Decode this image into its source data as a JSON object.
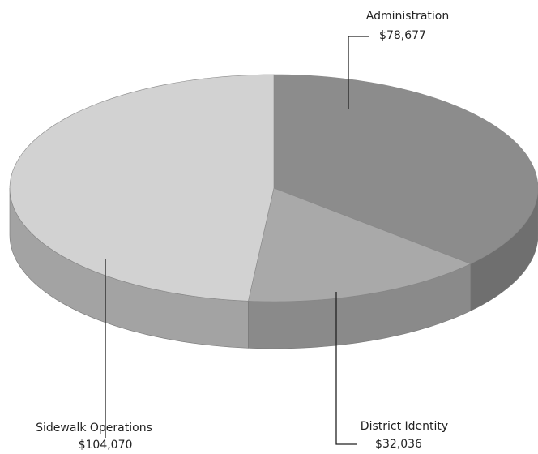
{
  "chart_data": {
    "type": "pie",
    "categories": [
      "Administration",
      "District Identity",
      "Sidewalk Operations"
    ],
    "values": [
      78677,
      32036,
      104070
    ],
    "value_labels": [
      "$78,677",
      "$32,036",
      "$104,070"
    ],
    "colors": [
      "#8c8c8c",
      "#a9a9a9",
      "#d2d2d2"
    ],
    "side_colors": [
      "#6f6f6f",
      "#8a8a8a",
      "#a3a3a3"
    ]
  }
}
